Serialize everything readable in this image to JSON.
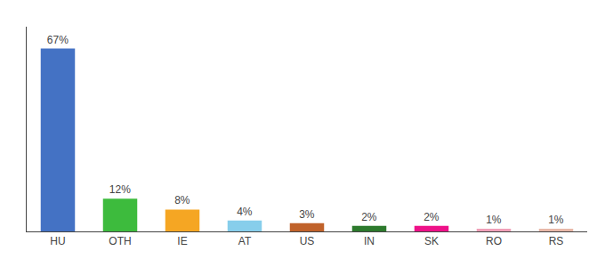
{
  "chart_data": {
    "type": "bar",
    "categories": [
      "HU",
      "OTH",
      "IE",
      "AT",
      "US",
      "IN",
      "SK",
      "RO",
      "RS"
    ],
    "values": [
      67,
      12,
      8,
      4,
      3,
      2,
      2,
      1,
      1
    ],
    "value_labels": [
      "67%",
      "12%",
      "8%",
      "4%",
      "3%",
      "2%",
      "2%",
      "1%",
      "1%"
    ],
    "colors": [
      "#4472c4",
      "#3dbb3d",
      "#f5a623",
      "#87ceeb",
      "#c0622b",
      "#2d7a2d",
      "#ee1188",
      "#f0a0b8",
      "#e8b8a8"
    ],
    "ylim": [
      0,
      75
    ],
    "data_labels": true,
    "tick_labels": "x",
    "grid": false
  }
}
